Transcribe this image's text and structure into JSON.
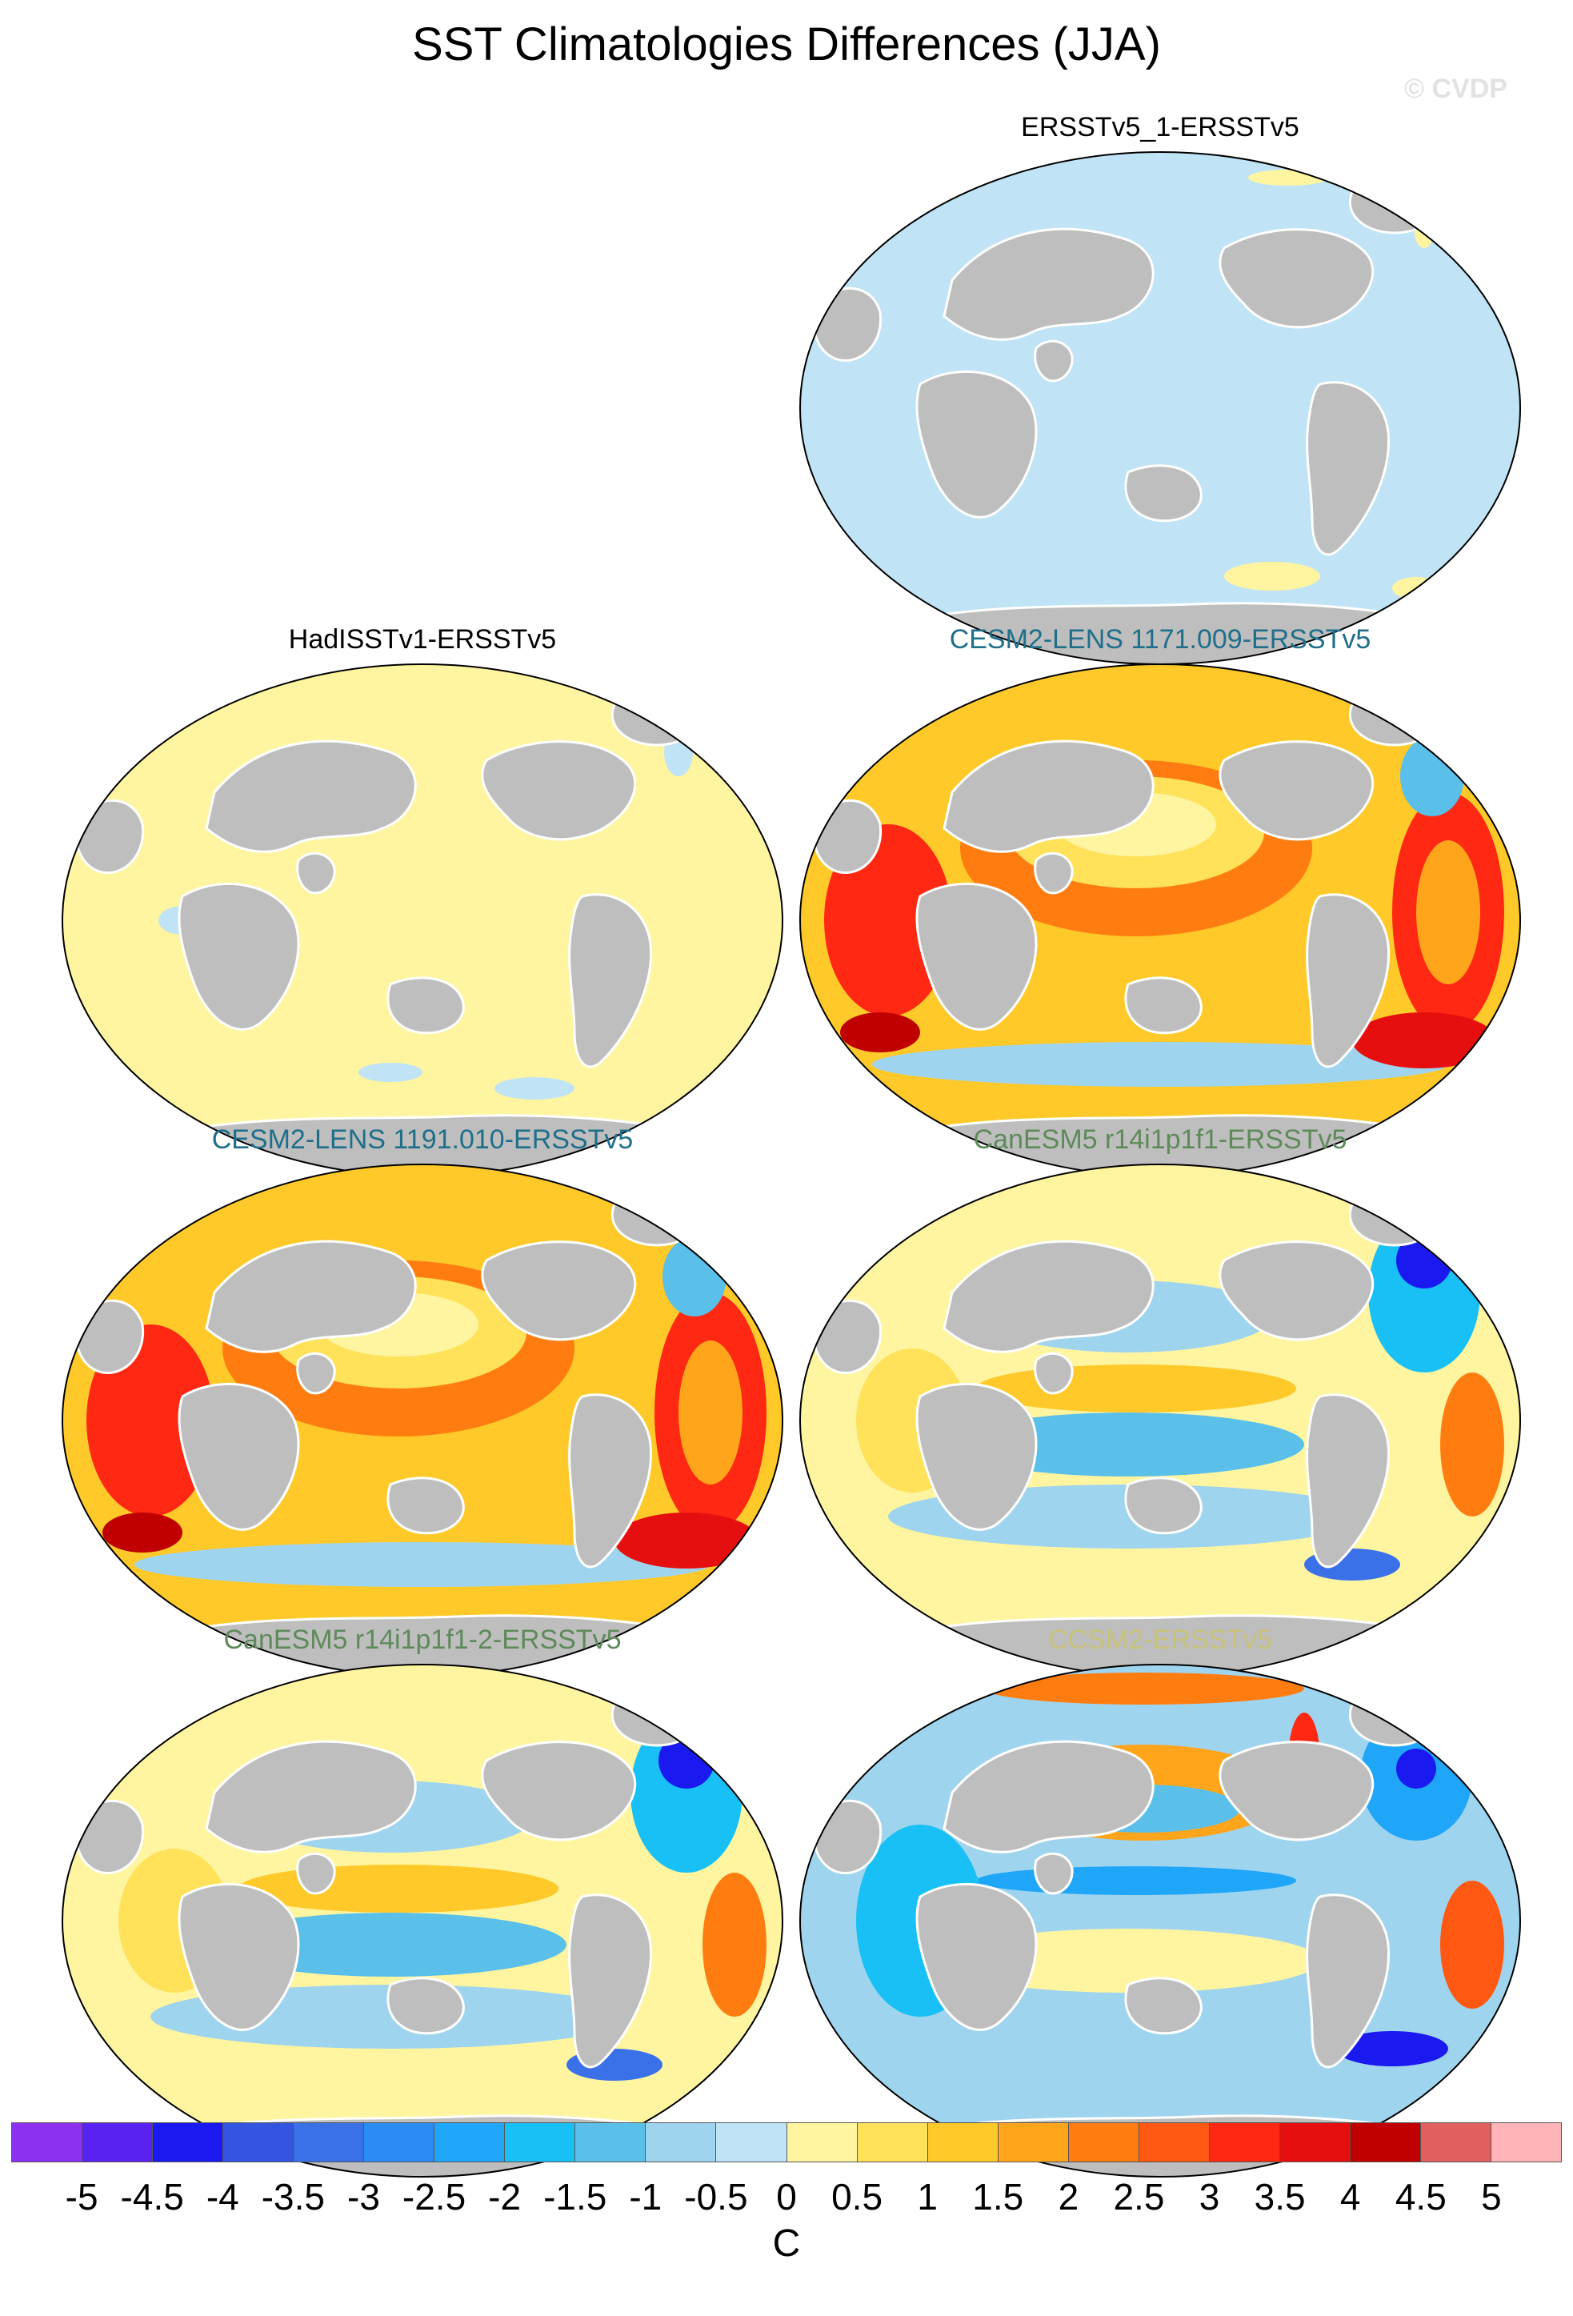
{
  "figure": {
    "title": "SST Climatologies Differences (JJA)",
    "watermark": "© CVDP"
  },
  "panels": [
    {
      "title": "ERSSTv5_1-ERSSTv5",
      "title_color": "#000000",
      "pattern": "zero"
    },
    {
      "title": "HadISSTv1-ERSSTv5",
      "title_color": "#000000",
      "pattern": "slight-warm"
    },
    {
      "title": "CESM2-LENS 1171.009-ERSSTv5",
      "title_color": "#1f6f8b",
      "pattern": "warm"
    },
    {
      "title": "CESM2-LENS 1191.010-ERSSTv5",
      "title_color": "#1f6f8b",
      "pattern": "warm"
    },
    {
      "title": "CanESM5 r14i1p1f1-ERSSTv5",
      "title_color": "#5e8a5a",
      "pattern": "mixed-cool"
    },
    {
      "title": "CanESM5 r14i1p1f1-2-ERSSTv5",
      "title_color": "#5e8a5a",
      "pattern": "mixed-cool"
    },
    {
      "title": "CCSM2-ERSSTv5",
      "title_color": "#c8c27a",
      "pattern": "mixed"
    }
  ],
  "colorbar": {
    "label": "C",
    "ticks": [
      "-5",
      "-4.5",
      "-4",
      "-3.5",
      "-3",
      "-2.5",
      "-2",
      "-1.5",
      "-1",
      "-0.5",
      "0",
      "0.5",
      "1",
      "1.5",
      "2",
      "2.5",
      "3",
      "3.5",
      "4",
      "4.5",
      "5"
    ],
    "colors": [
      "#8c31f0",
      "#5a22f0",
      "#1a1af0",
      "#3355e0",
      "#3a70e8",
      "#2c8cf5",
      "#1fa6f8",
      "#18c0f5",
      "#5abfe9",
      "#9fd4ef",
      "#c0e3f5",
      "#fff5a0",
      "#ffe15a",
      "#ffc92a",
      "#ffa51c",
      "#ff7d10",
      "#ff5812",
      "#ff2812",
      "#e60f0f",
      "#c00000",
      "#e06060",
      "#ffb4b8"
    ]
  }
}
